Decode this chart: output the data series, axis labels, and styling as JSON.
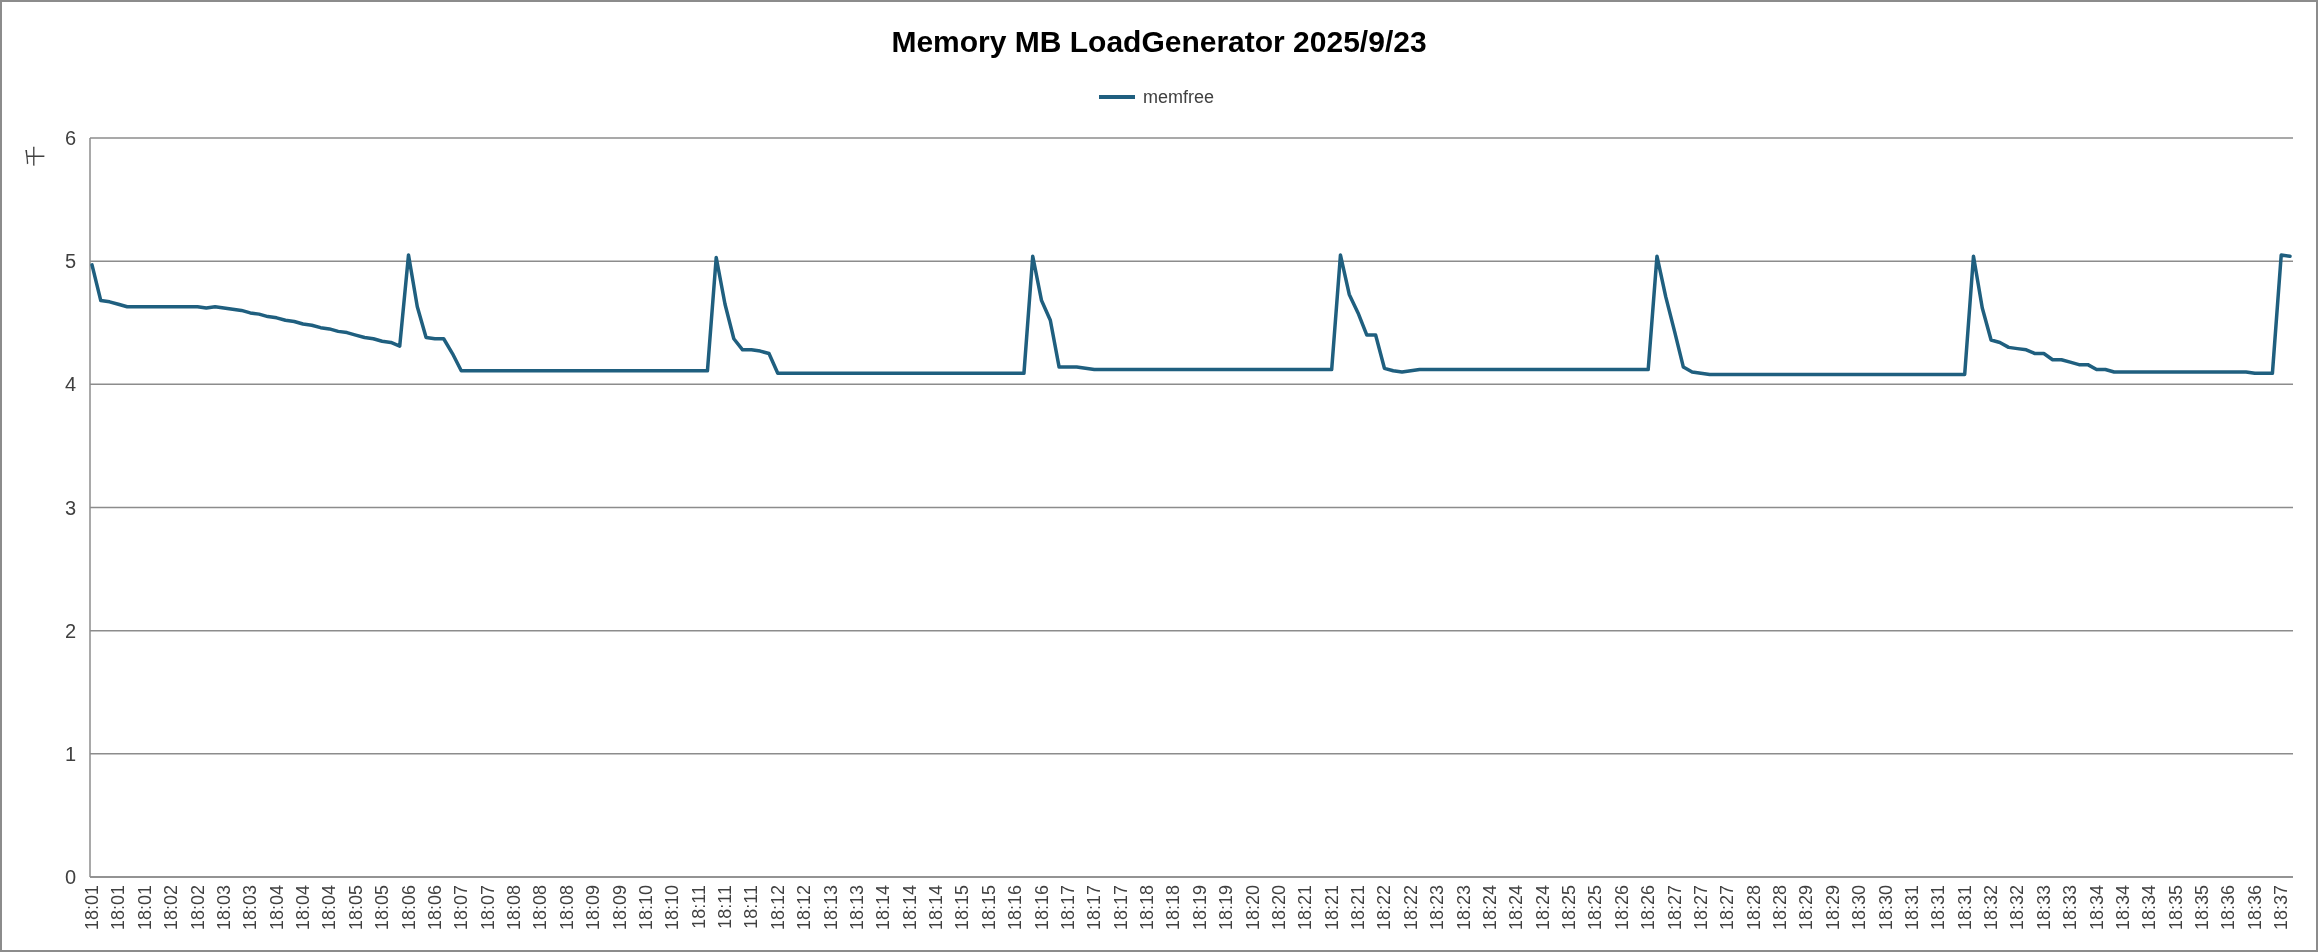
{
  "chart_data": {
    "type": "line",
    "title": "Memory MB LoadGenerator  2025/9/23",
    "ylabel": "千",
    "categories": [
      "18:01",
      null,
      null,
      "18:01",
      null,
      null,
      "18:01",
      null,
      null,
      "18:02",
      null,
      null,
      "18:02",
      null,
      null,
      "18:03",
      null,
      null,
      "18:03",
      null,
      null,
      "18:04",
      null,
      null,
      "18:04",
      null,
      null,
      "18:04",
      null,
      null,
      "18:05",
      null,
      null,
      "18:05",
      null,
      null,
      "18:06",
      null,
      null,
      "18:06",
      null,
      null,
      "18:07",
      null,
      null,
      "18:07",
      null,
      null,
      "18:08",
      null,
      null,
      "18:08",
      null,
      null,
      "18:08",
      null,
      null,
      "18:09",
      null,
      null,
      "18:09",
      null,
      null,
      "18:10",
      null,
      null,
      "18:10",
      null,
      null,
      "18:11",
      null,
      null,
      "18:11",
      null,
      null,
      "18:11",
      null,
      null,
      "18:12",
      null,
      null,
      "18:12",
      null,
      null,
      "18:13",
      null,
      null,
      "18:13",
      null,
      null,
      "18:14",
      null,
      null,
      "18:14",
      null,
      null,
      "18:14",
      null,
      null,
      "18:15",
      null,
      null,
      "18:15",
      null,
      null,
      "18:16",
      null,
      null,
      "18:16",
      null,
      null,
      "18:17",
      null,
      null,
      "18:17",
      null,
      null,
      "18:17",
      null,
      null,
      "18:18",
      null,
      null,
      "18:18",
      null,
      null,
      "18:19",
      null,
      null,
      "18:19",
      null,
      null,
      "18:20",
      null,
      null,
      "18:20",
      null,
      null,
      "18:21",
      null,
      null,
      "18:21",
      null,
      null,
      "18:21",
      null,
      null,
      "18:22",
      null,
      null,
      "18:22",
      null,
      null,
      "18:23",
      null,
      null,
      "18:23",
      null,
      null,
      "18:24",
      null,
      null,
      "18:24",
      null,
      null,
      "18:24",
      null,
      null,
      "18:25",
      null,
      null,
      "18:25",
      null,
      null,
      "18:26",
      null,
      null,
      "18:26",
      null,
      null,
      "18:27",
      null,
      null,
      "18:27",
      null,
      null,
      "18:27",
      null,
      null,
      "18:28",
      null,
      null,
      "18:28",
      null,
      null,
      "18:29",
      null,
      null,
      "18:29",
      null,
      null,
      "18:30",
      null,
      null,
      "18:30",
      null,
      null,
      "18:31",
      null,
      null,
      "18:31",
      null,
      null,
      "18:31",
      null,
      null,
      "18:32",
      null,
      null,
      "18:32",
      null,
      null,
      "18:33",
      null,
      null,
      "18:33",
      null,
      null,
      "18:34",
      null,
      null,
      "18:34",
      null,
      null,
      "18:34",
      null,
      null,
      "18:35",
      null,
      null,
      "18:35",
      null,
      null,
      "18:36",
      null,
      null,
      "18:36",
      null,
      null,
      "18:37",
      null
    ],
    "series": [
      {
        "name": "memfree",
        "color": "#1f5f7f",
        "values": [
          4.97,
          4.68,
          4.67,
          4.65,
          4.63,
          4.63,
          4.63,
          4.63,
          4.63,
          4.63,
          4.63,
          4.63,
          4.63,
          4.62,
          4.63,
          4.62,
          4.61,
          4.6,
          4.58,
          4.57,
          4.55,
          4.54,
          4.52,
          4.51,
          4.49,
          4.48,
          4.46,
          4.45,
          4.43,
          4.42,
          4.4,
          4.38,
          4.37,
          4.35,
          4.34,
          4.31,
          5.05,
          4.63,
          4.38,
          4.37,
          4.37,
          4.25,
          4.11,
          4.11,
          4.11,
          4.11,
          4.11,
          4.11,
          4.11,
          4.11,
          4.11,
          4.11,
          4.11,
          4.11,
          4.11,
          4.11,
          4.11,
          4.11,
          4.11,
          4.11,
          4.11,
          4.11,
          4.11,
          4.11,
          4.11,
          4.11,
          4.11,
          4.11,
          4.11,
          4.11,
          4.11,
          5.03,
          4.65,
          4.37,
          4.28,
          4.28,
          4.27,
          4.25,
          4.09,
          4.09,
          4.09,
          4.09,
          4.09,
          4.09,
          4.09,
          4.09,
          4.09,
          4.09,
          4.09,
          4.09,
          4.09,
          4.09,
          4.09,
          4.09,
          4.09,
          4.09,
          4.09,
          4.09,
          4.09,
          4.09,
          4.09,
          4.09,
          4.09,
          4.09,
          4.09,
          4.09,
          4.09,
          5.04,
          4.68,
          4.52,
          4.14,
          4.14,
          4.14,
          4.13,
          4.12,
          4.12,
          4.12,
          4.12,
          4.12,
          4.12,
          4.12,
          4.12,
          4.12,
          4.12,
          4.12,
          4.12,
          4.12,
          4.12,
          4.12,
          4.12,
          4.12,
          4.12,
          4.12,
          4.12,
          4.12,
          4.12,
          4.12,
          4.12,
          4.12,
          4.12,
          4.12,
          4.12,
          5.05,
          4.73,
          4.58,
          4.4,
          4.4,
          4.13,
          4.11,
          4.1,
          4.11,
          4.12,
          4.12,
          4.12,
          4.12,
          4.12,
          4.12,
          4.12,
          4.12,
          4.12,
          4.12,
          4.12,
          4.12,
          4.12,
          4.12,
          4.12,
          4.12,
          4.12,
          4.12,
          4.12,
          4.12,
          4.12,
          4.12,
          4.12,
          4.12,
          4.12,
          4.12,
          4.12,
          5.04,
          4.71,
          4.43,
          4.14,
          4.1,
          4.09,
          4.08,
          4.08,
          4.08,
          4.08,
          4.08,
          4.08,
          4.08,
          4.08,
          4.08,
          4.08,
          4.08,
          4.08,
          4.08,
          4.08,
          4.08,
          4.08,
          4.08,
          4.08,
          4.08,
          4.08,
          4.08,
          4.08,
          4.08,
          4.08,
          4.08,
          4.08,
          4.08,
          4.08,
          4.08,
          4.08,
          5.04,
          4.62,
          4.36,
          4.34,
          4.3,
          4.29,
          4.28,
          4.25,
          4.25,
          4.2,
          4.2,
          4.18,
          4.16,
          4.16,
          4.12,
          4.12,
          4.1,
          4.1,
          4.1,
          4.1,
          4.1,
          4.1,
          4.1,
          4.1,
          4.1,
          4.1,
          4.1,
          4.1,
          4.1,
          4.1,
          4.1,
          4.1,
          4.09,
          4.09,
          4.09,
          5.05,
          5.04
        ]
      }
    ],
    "ylim": [
      0,
      6
    ],
    "yticks": [
      0,
      1,
      2,
      3,
      4,
      5,
      6
    ],
    "grid": "y",
    "legend": "top",
    "marker": "none",
    "line_style": "solid"
  }
}
